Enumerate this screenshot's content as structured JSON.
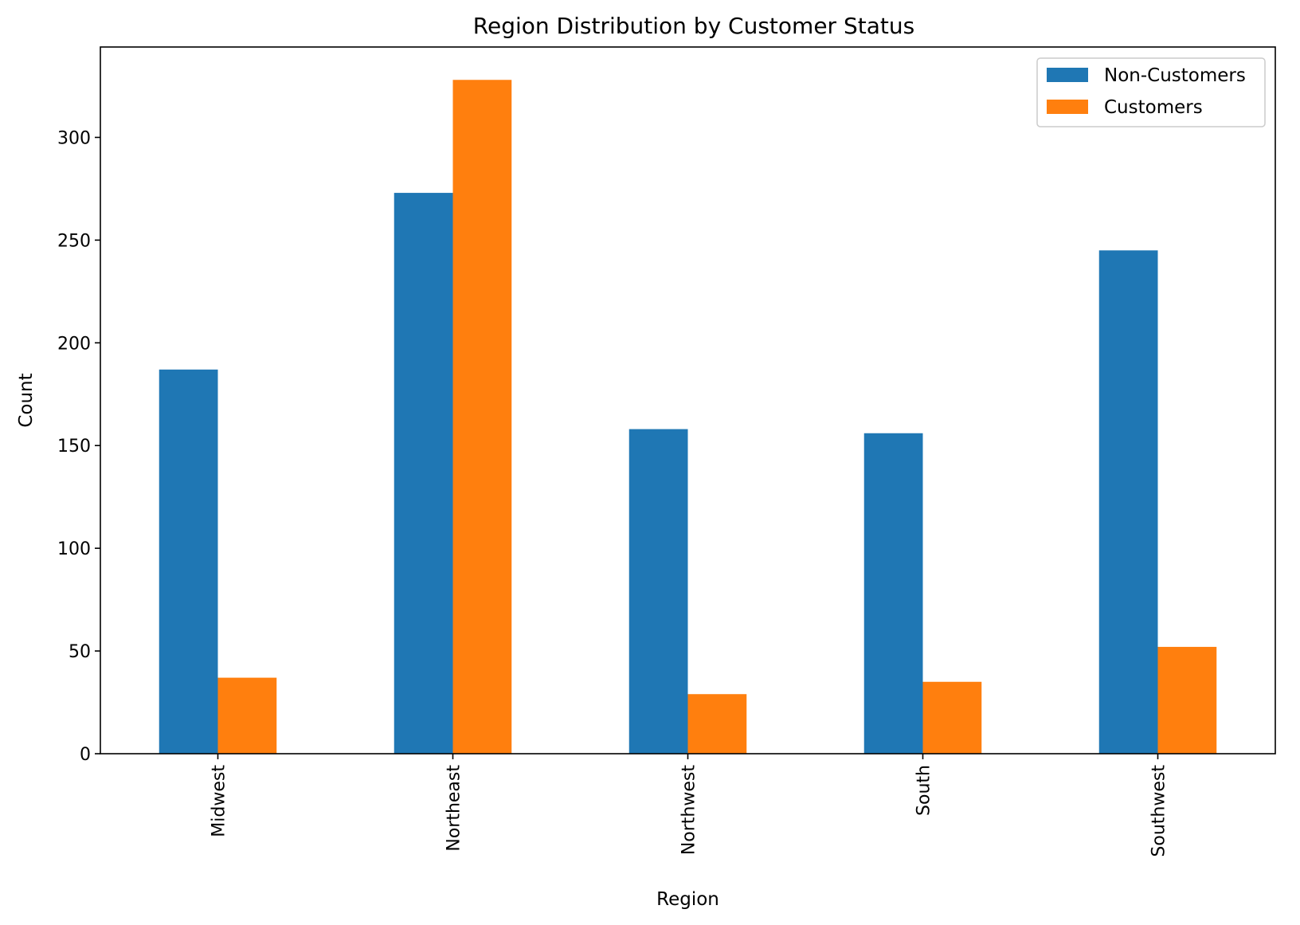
{
  "chart_data": {
    "type": "bar",
    "title": "Region Distribution by Customer Status",
    "xlabel": "Region",
    "ylabel": "Count",
    "categories": [
      "Midwest",
      "Northeast",
      "Northwest",
      "South",
      "Southwest"
    ],
    "series": [
      {
        "name": "Non-Customers",
        "color": "#1f77b4",
        "values": [
          187,
          273,
          158,
          156,
          245
        ]
      },
      {
        "name": "Customers",
        "color": "#ff7f0e",
        "values": [
          37,
          328,
          29,
          35,
          52
        ]
      }
    ],
    "yticks": [
      0,
      50,
      100,
      150,
      200,
      250,
      300
    ],
    "ylim": [
      0,
      344
    ],
    "grid": false,
    "legend_position": "top-right"
  }
}
